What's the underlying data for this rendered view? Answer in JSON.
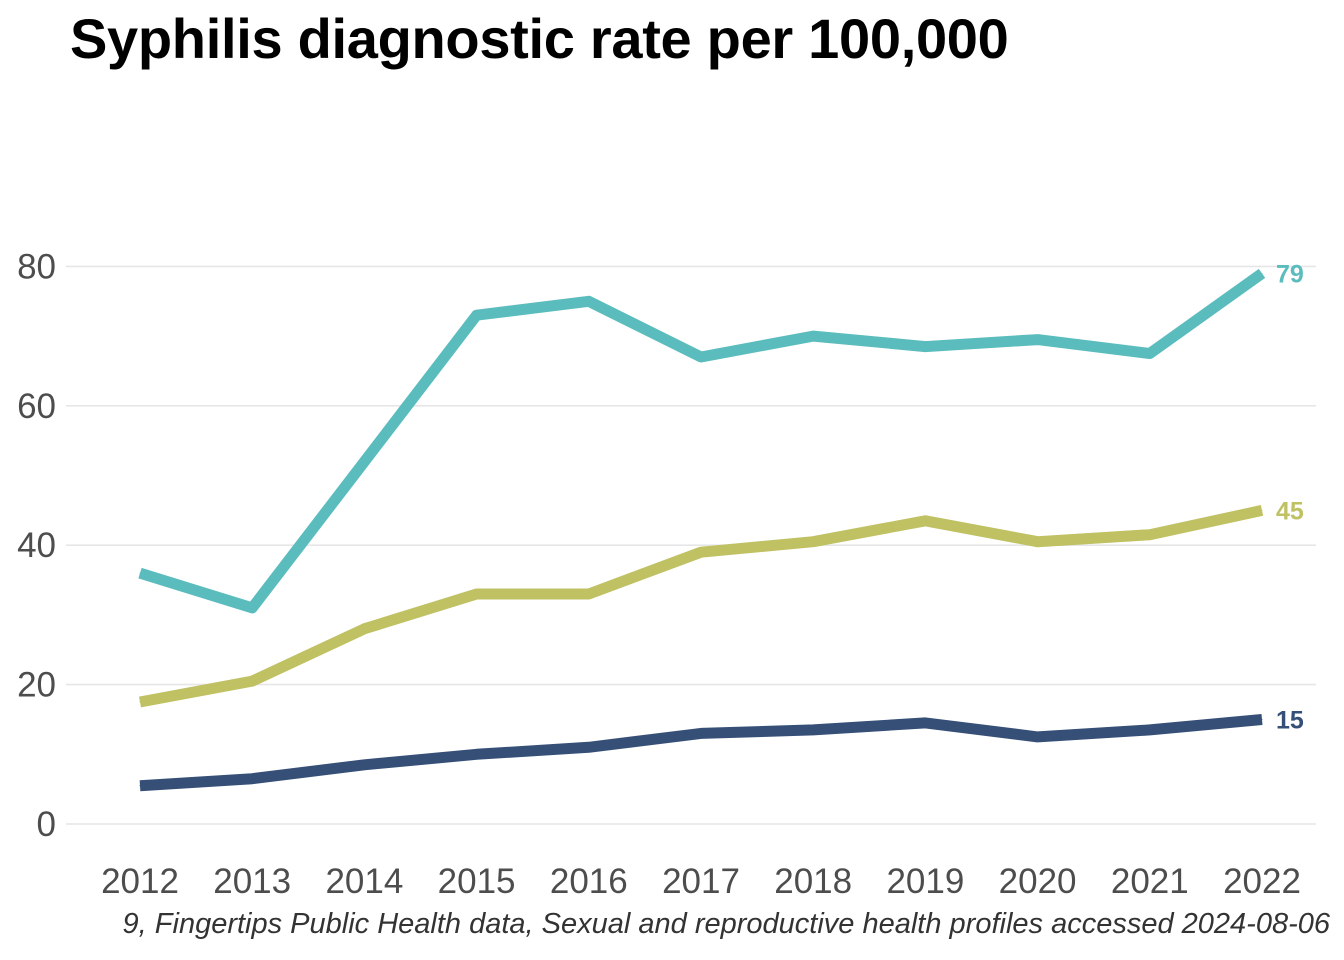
{
  "title": "Syphilis diagnostic rate per 100,000",
  "caption": "9, Fingertips Public Health data, Sexual and reproductive health profiles accessed 2024-08-06",
  "chart_data": {
    "type": "line",
    "title": "Syphilis diagnostic rate per 100,000",
    "xlabel": "",
    "ylabel": "",
    "x": [
      2012,
      2013,
      2014,
      2015,
      2016,
      2017,
      2018,
      2019,
      2020,
      2021,
      2022
    ],
    "ylim": [
      0,
      90
    ],
    "yticks": [
      0,
      20,
      40,
      60,
      80
    ],
    "grid": "horizontal",
    "legend": "none",
    "series": [
      {
        "color": "#5bbcbd",
        "values": [
          36,
          31,
          52,
          73,
          75,
          67,
          70,
          68.5,
          69.5,
          67.5,
          79
        ],
        "end_label": "79"
      },
      {
        "color": "#bfc163",
        "values": [
          17.5,
          20.5,
          28,
          33,
          33,
          39,
          40.5,
          43.5,
          40.5,
          41.5,
          45
        ],
        "end_label": "45"
      },
      {
        "color": "#354f77",
        "values": [
          5.5,
          6.5,
          8.5,
          10,
          11,
          13,
          13.5,
          14.5,
          12.5,
          13.5,
          15
        ],
        "end_label": "15"
      }
    ]
  }
}
